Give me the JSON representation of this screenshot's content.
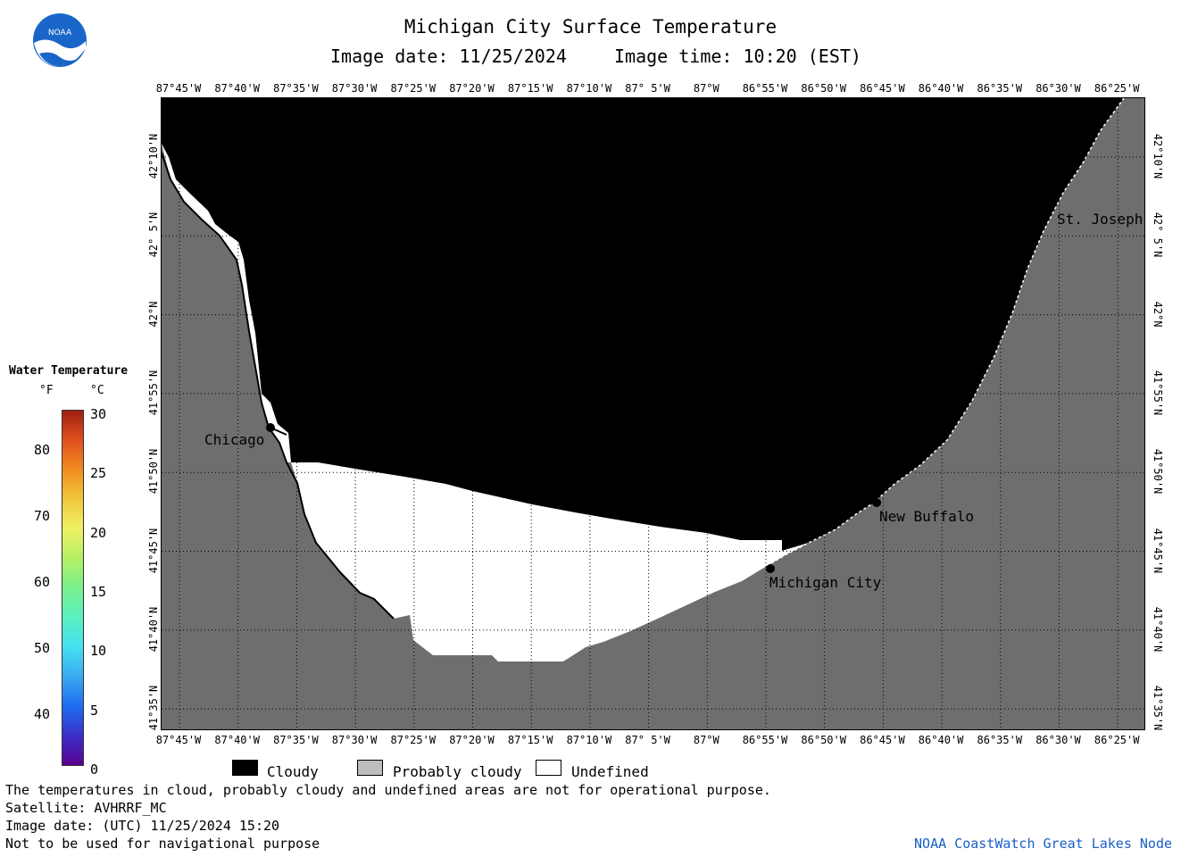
{
  "header": {
    "title": "Michigan City Surface Temperature",
    "image_date": "Image date: 11/25/2024",
    "image_time": "Image time: 10:20 (EST)"
  },
  "logo": {
    "text": "NOAA"
  },
  "map": {
    "lon_labels": [
      "87°45'W",
      "87°40'W",
      "87°35'W",
      "87°30'W",
      "87°25'W",
      "87°20'W",
      "87°15'W",
      "87°10'W",
      "87° 5'W",
      "87°W",
      "86°55'W",
      "86°50'W",
      "86°45'W",
      "86°40'W",
      "86°35'W",
      "86°30'W",
      "86°25'W"
    ],
    "lat_labels": [
      "42°10'N",
      "42° 5'N",
      "42°N",
      "41°55'N",
      "41°50'N",
      "41°45'N",
      "41°40'N",
      "41°35'N"
    ],
    "cities": [
      "Chicago",
      "St. Joseph",
      "New Buffalo",
      "Michigan City"
    ],
    "colors": {
      "cloudy": "#000000",
      "land": "#6e6e6e",
      "undefined": "#ffffff",
      "grid": "#000000"
    }
  },
  "legend": {
    "title": "Water Temperature",
    "unit_f": "°F",
    "unit_c": "°C",
    "f_ticks": [
      "80",
      "70",
      "60",
      "50",
      "40"
    ],
    "c_ticks": [
      "30",
      "25",
      "20",
      "15",
      "10",
      "5",
      "0"
    ],
    "colorbar_colors": [
      "#5a0090",
      "#3a30c8",
      "#1e6cf0",
      "#3aaaf0",
      "#46e0f0",
      "#5af0c0",
      "#78f08c",
      "#b4f064",
      "#f0f064",
      "#f0c83c",
      "#f08c1e",
      "#e0501e",
      "#a02010"
    ]
  },
  "key": {
    "cloudy": "Cloudy",
    "probably_cloudy": "Probably cloudy",
    "undefined": "Undefined"
  },
  "footer": {
    "note1": "The temperatures in cloud, probably cloudy and undefined areas are not for operational purpose.",
    "satellite": "Satellite: AVHRRF_MC",
    "image_date_utc": "Image date: (UTC) 11/25/2024  15:20",
    "disclaimer": "Not to be used for navigational purpose",
    "credit": "NOAA CoastWatch Great Lakes Node"
  }
}
